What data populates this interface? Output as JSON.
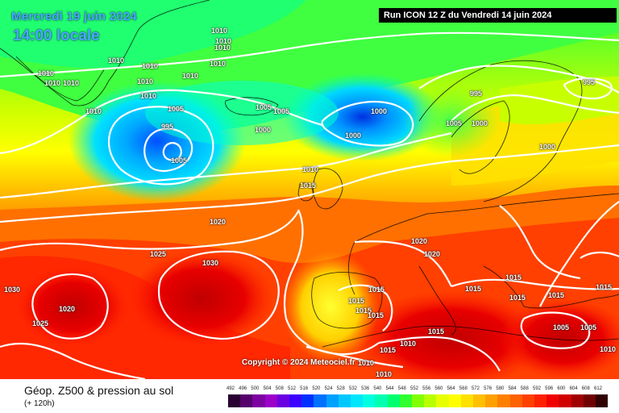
{
  "header": {
    "date_label": "Mercredi 19 juin 2024",
    "time_label": "14:00 locale",
    "run_label": "Run ICON 12 Z du Vendredi 14 juin 2024"
  },
  "map": {
    "copyright": "Copyright © 2024 Meteociel.fr",
    "pressure_labels": [
      "1010",
      "1010",
      "1010",
      "1010",
      "1010",
      "1010",
      "1010",
      "1010",
      "1010",
      "1010",
      "1010",
      "1010",
      "1010",
      "1005",
      "1005",
      "1005",
      "1000",
      "995",
      "1005",
      "1000",
      "1000",
      "995",
      "1005",
      "1000",
      "995",
      "1000",
      "1010",
      "1015",
      "1020",
      "1025",
      "1030",
      "1030",
      "1020",
      "1025",
      "1020",
      "1020",
      "1015",
      "1015",
      "1015",
      "1015",
      "1015",
      "1015",
      "1015",
      "1015",
      "1015",
      "1015",
      "1015",
      "1010",
      "1010",
      "1010",
      "1005",
      "1005",
      "1010"
    ]
  },
  "footer": {
    "title": "Géop. Z500 & pression au sol",
    "subtitle": "(+ 120h)"
  },
  "legend": {
    "ticks": [
      "492",
      "496",
      "500",
      "504",
      "508",
      "512",
      "516",
      "520",
      "524",
      "528",
      "532",
      "536",
      "540",
      "544",
      "548",
      "552",
      "556",
      "560",
      "564",
      "568",
      "572",
      "576",
      "580",
      "584",
      "588",
      "592",
      "596",
      "600",
      "604",
      "608",
      "612"
    ],
    "colors": [
      "#2a0033",
      "#55006b",
      "#7d00a0",
      "#9b00c8",
      "#6a00e0",
      "#3d00ff",
      "#0030ff",
      "#0070ff",
      "#00a0ff",
      "#00c8ff",
      "#00e6ff",
      "#00ffe0",
      "#00ffb0",
      "#00ff70",
      "#30ff30",
      "#80ff00",
      "#b8ff00",
      "#e8ff00",
      "#ffff00",
      "#ffe000",
      "#ffc000",
      "#ffa000",
      "#ff8000",
      "#ff6000",
      "#ff4000",
      "#ff2000",
      "#f00000",
      "#d00000",
      "#a00000",
      "#700000",
      "#300000"
    ]
  }
}
